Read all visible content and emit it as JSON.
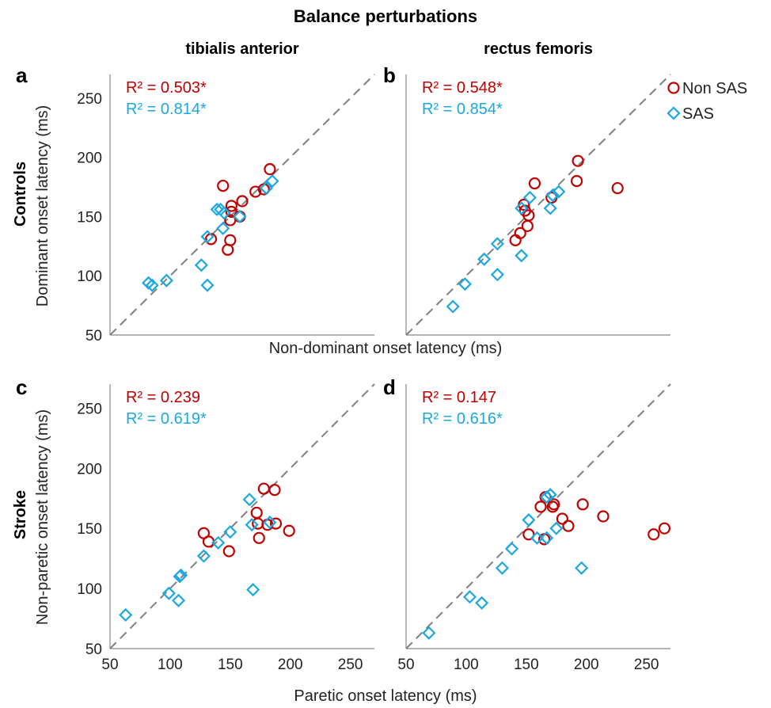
{
  "figure": {
    "title": "Balance perturbations",
    "col_titles": [
      "tibialis anterior",
      "rectus femoris"
    ],
    "row_titles": [
      "Controls",
      "Stroke"
    ],
    "x_labels": [
      "Non-dominant onset latency (ms)",
      "Paretic onset latency (ms)"
    ],
    "y_labels": [
      "Dominant onset latency (ms)",
      "Non-paretic onset latency (ms)"
    ],
    "legend": [
      {
        "label": "Non SAS",
        "marker": "circle",
        "color": "#c00000"
      },
      {
        "label": "SAS",
        "marker": "diamond",
        "color": "#1ba8e0"
      }
    ],
    "colors": {
      "non_sas": "#c00000",
      "sas": "#1ba8e0",
      "identity_line": "#808080"
    }
  },
  "chart_data": [
    {
      "type": "scatter",
      "panel": "a",
      "xlim": [
        50,
        270
      ],
      "ylim": [
        50,
        270
      ],
      "xticks": [],
      "yticks": [
        "50",
        "100",
        "150",
        "200",
        "250"
      ],
      "identity_line": true,
      "annotations": [
        "R² = 0.503*",
        "R² = 0.814*"
      ],
      "series": [
        {
          "name": "Non SAS",
          "points": [
            [
              134,
              131
            ],
            [
              144,
              176
            ],
            [
              148,
              122
            ],
            [
              150,
              130
            ],
            [
              150,
              147
            ],
            [
              151,
              159
            ],
            [
              151,
              154
            ],
            [
              158,
              150
            ],
            [
              160,
              163
            ],
            [
              171,
              171
            ],
            [
              178,
              173
            ],
            [
              183,
              190
            ]
          ]
        },
        {
          "name": "SAS",
          "points": [
            [
              82,
              94
            ],
            [
              85,
              92
            ],
            [
              97,
              96
            ],
            [
              126,
              109
            ],
            [
              131,
              133
            ],
            [
              131,
              92
            ],
            [
              139,
              156
            ],
            [
              142,
              156
            ],
            [
              144,
              140
            ],
            [
              145,
              153
            ],
            [
              158,
              150
            ],
            [
              180,
              174
            ],
            [
              185,
              180
            ]
          ]
        }
      ]
    },
    {
      "type": "scatter",
      "panel": "b",
      "xlim": [
        50,
        270
      ],
      "ylim": [
        50,
        270
      ],
      "xticks": [],
      "yticks": [],
      "identity_line": true,
      "annotations": [
        "R² = 0.548*",
        "R² = 0.854*"
      ],
      "series": [
        {
          "name": "Non SAS",
          "points": [
            [
              141,
              130
            ],
            [
              145,
              136
            ],
            [
              148,
              160
            ],
            [
              149,
              155
            ],
            [
              151,
              142
            ],
            [
              152,
              151
            ],
            [
              157,
              178
            ],
            [
              171,
              166
            ],
            [
              192,
              180
            ],
            [
              193,
              197
            ],
            [
              226,
              174
            ]
          ]
        },
        {
          "name": "SAS",
          "points": [
            [
              89,
              74
            ],
            [
              99,
              93
            ],
            [
              115,
              114
            ],
            [
              126,
              127
            ],
            [
              126,
              101
            ],
            [
              146,
              117
            ],
            [
              146,
              157
            ],
            [
              153,
              166
            ],
            [
              170,
              157
            ],
            [
              172,
              168
            ],
            [
              177,
              171
            ]
          ]
        }
      ]
    },
    {
      "type": "scatter",
      "panel": "c",
      "xlim": [
        50,
        270
      ],
      "ylim": [
        50,
        270
      ],
      "xticks": [
        "50",
        "100",
        "150",
        "200",
        "250"
      ],
      "yticks": [
        "50",
        "100",
        "150",
        "200",
        "250"
      ],
      "identity_line": true,
      "annotations": [
        "R² = 0.239",
        "R² = 0.619*"
      ],
      "series": [
        {
          "name": "Non SAS",
          "points": [
            [
              128,
              146
            ],
            [
              132,
              139
            ],
            [
              149,
              131
            ],
            [
              172,
              163
            ],
            [
              173,
              154
            ],
            [
              174,
              142
            ],
            [
              178,
              183
            ],
            [
              181,
              153
            ],
            [
              187,
              182
            ],
            [
              188,
              154
            ],
            [
              199,
              148
            ]
          ]
        },
        {
          "name": "SAS",
          "points": [
            [
              63,
              78
            ],
            [
              99,
              96
            ],
            [
              107,
              90
            ],
            [
              108,
              110
            ],
            [
              109,
              111
            ],
            [
              128,
              127
            ],
            [
              140,
              138
            ],
            [
              150,
              147
            ],
            [
              166,
              174
            ],
            [
              168,
              153
            ],
            [
              169,
              99
            ],
            [
              183,
              155
            ]
          ]
        }
      ]
    },
    {
      "type": "scatter",
      "panel": "d",
      "xlim": [
        50,
        270
      ],
      "ylim": [
        50,
        270
      ],
      "xticks": [
        "50",
        "100",
        "150",
        "200",
        "250"
      ],
      "yticks": [],
      "identity_line": true,
      "annotations": [
        "R² = 0.147",
        "R² = 0.616*"
      ],
      "series": [
        {
          "name": "Non SAS",
          "points": [
            [
              152,
              145
            ],
            [
              162,
              168
            ],
            [
              165,
              141
            ],
            [
              166,
              176
            ],
            [
              172,
              168
            ],
            [
              173,
              170
            ],
            [
              180,
              158
            ],
            [
              185,
              152
            ],
            [
              197,
              170
            ],
            [
              214,
              160
            ],
            [
              256,
              145
            ],
            [
              265,
              150
            ]
          ]
        },
        {
          "name": "SAS",
          "points": [
            [
              69,
              63
            ],
            [
              103,
              93
            ],
            [
              113,
              88
            ],
            [
              130,
              117
            ],
            [
              138,
              133
            ],
            [
              152,
              157
            ],
            [
              159,
              142
            ],
            [
              167,
              142
            ],
            [
              167,
              176
            ],
            [
              170,
              178
            ],
            [
              175,
              150
            ],
            [
              196,
              117
            ]
          ]
        }
      ]
    }
  ]
}
